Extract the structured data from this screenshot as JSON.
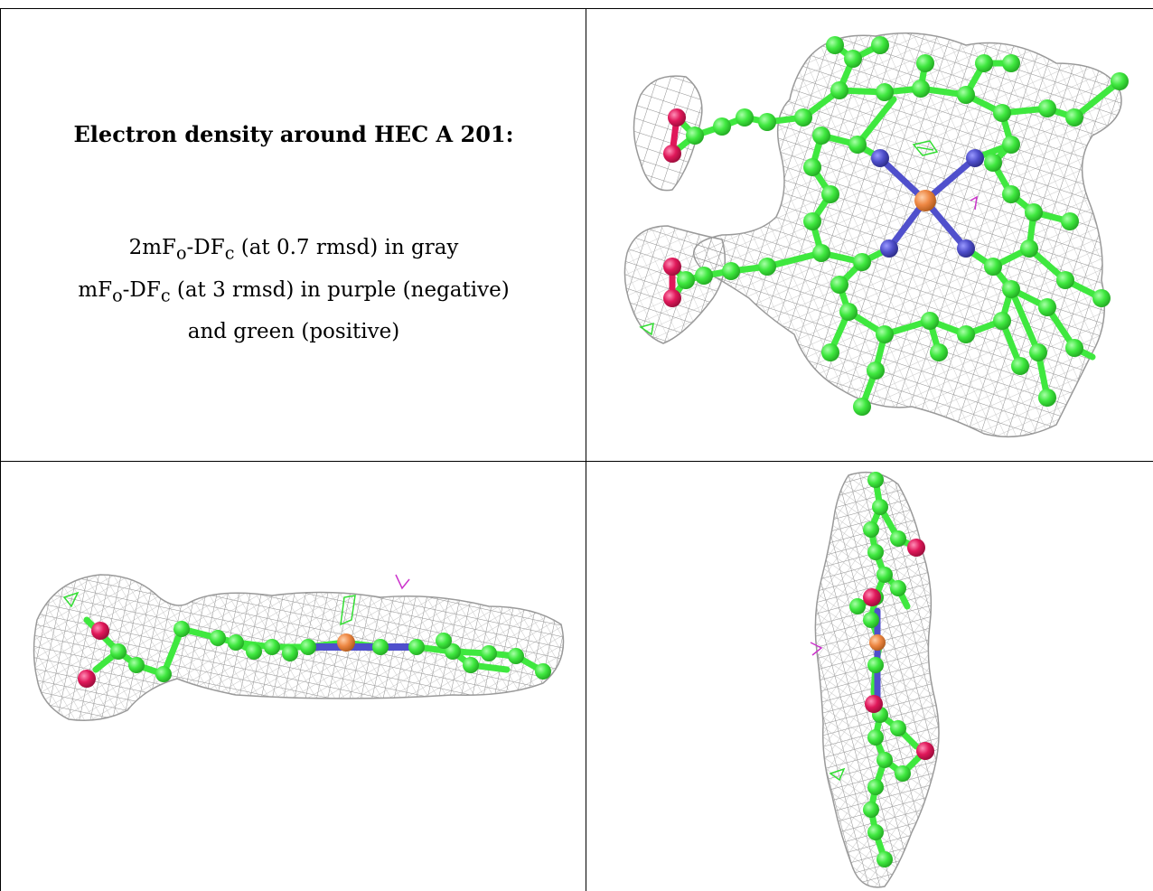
{
  "caption": {
    "title": "Electron density around HEC A 201:",
    "line1_main": "2mF",
    "line1_sub_o": "o",
    "line1_mid": "-DF",
    "line1_sub_c": "c",
    "line1_tail": " (at 0.7 rmsd) in gray",
    "line2_main": "mF",
    "line2_sub_o": "o",
    "line2_mid": "-DF",
    "line2_sub_c": "c",
    "line2_tail": " (at 3 rmsd) in purple (negative)",
    "line3": "and green (positive)"
  },
  "colors": {
    "carbon": "#3fe83f",
    "carbon_edge": "#2bb32b",
    "nitrogen": "#4f4fcc",
    "iron": "#ee8844",
    "oxygen": "#e0185a",
    "mesh": "#8a8a8a",
    "mesh_light": "#b5b5b5",
    "negative": "#cc33cc",
    "positive": "#33dd33"
  },
  "panels": [
    {
      "view": "top view of heme",
      "orientation": "face-on"
    },
    {
      "view": "side view of heme",
      "orientation": "edge-on horizontal"
    },
    {
      "view": "end view of heme",
      "orientation": "edge-on vertical"
    }
  ]
}
